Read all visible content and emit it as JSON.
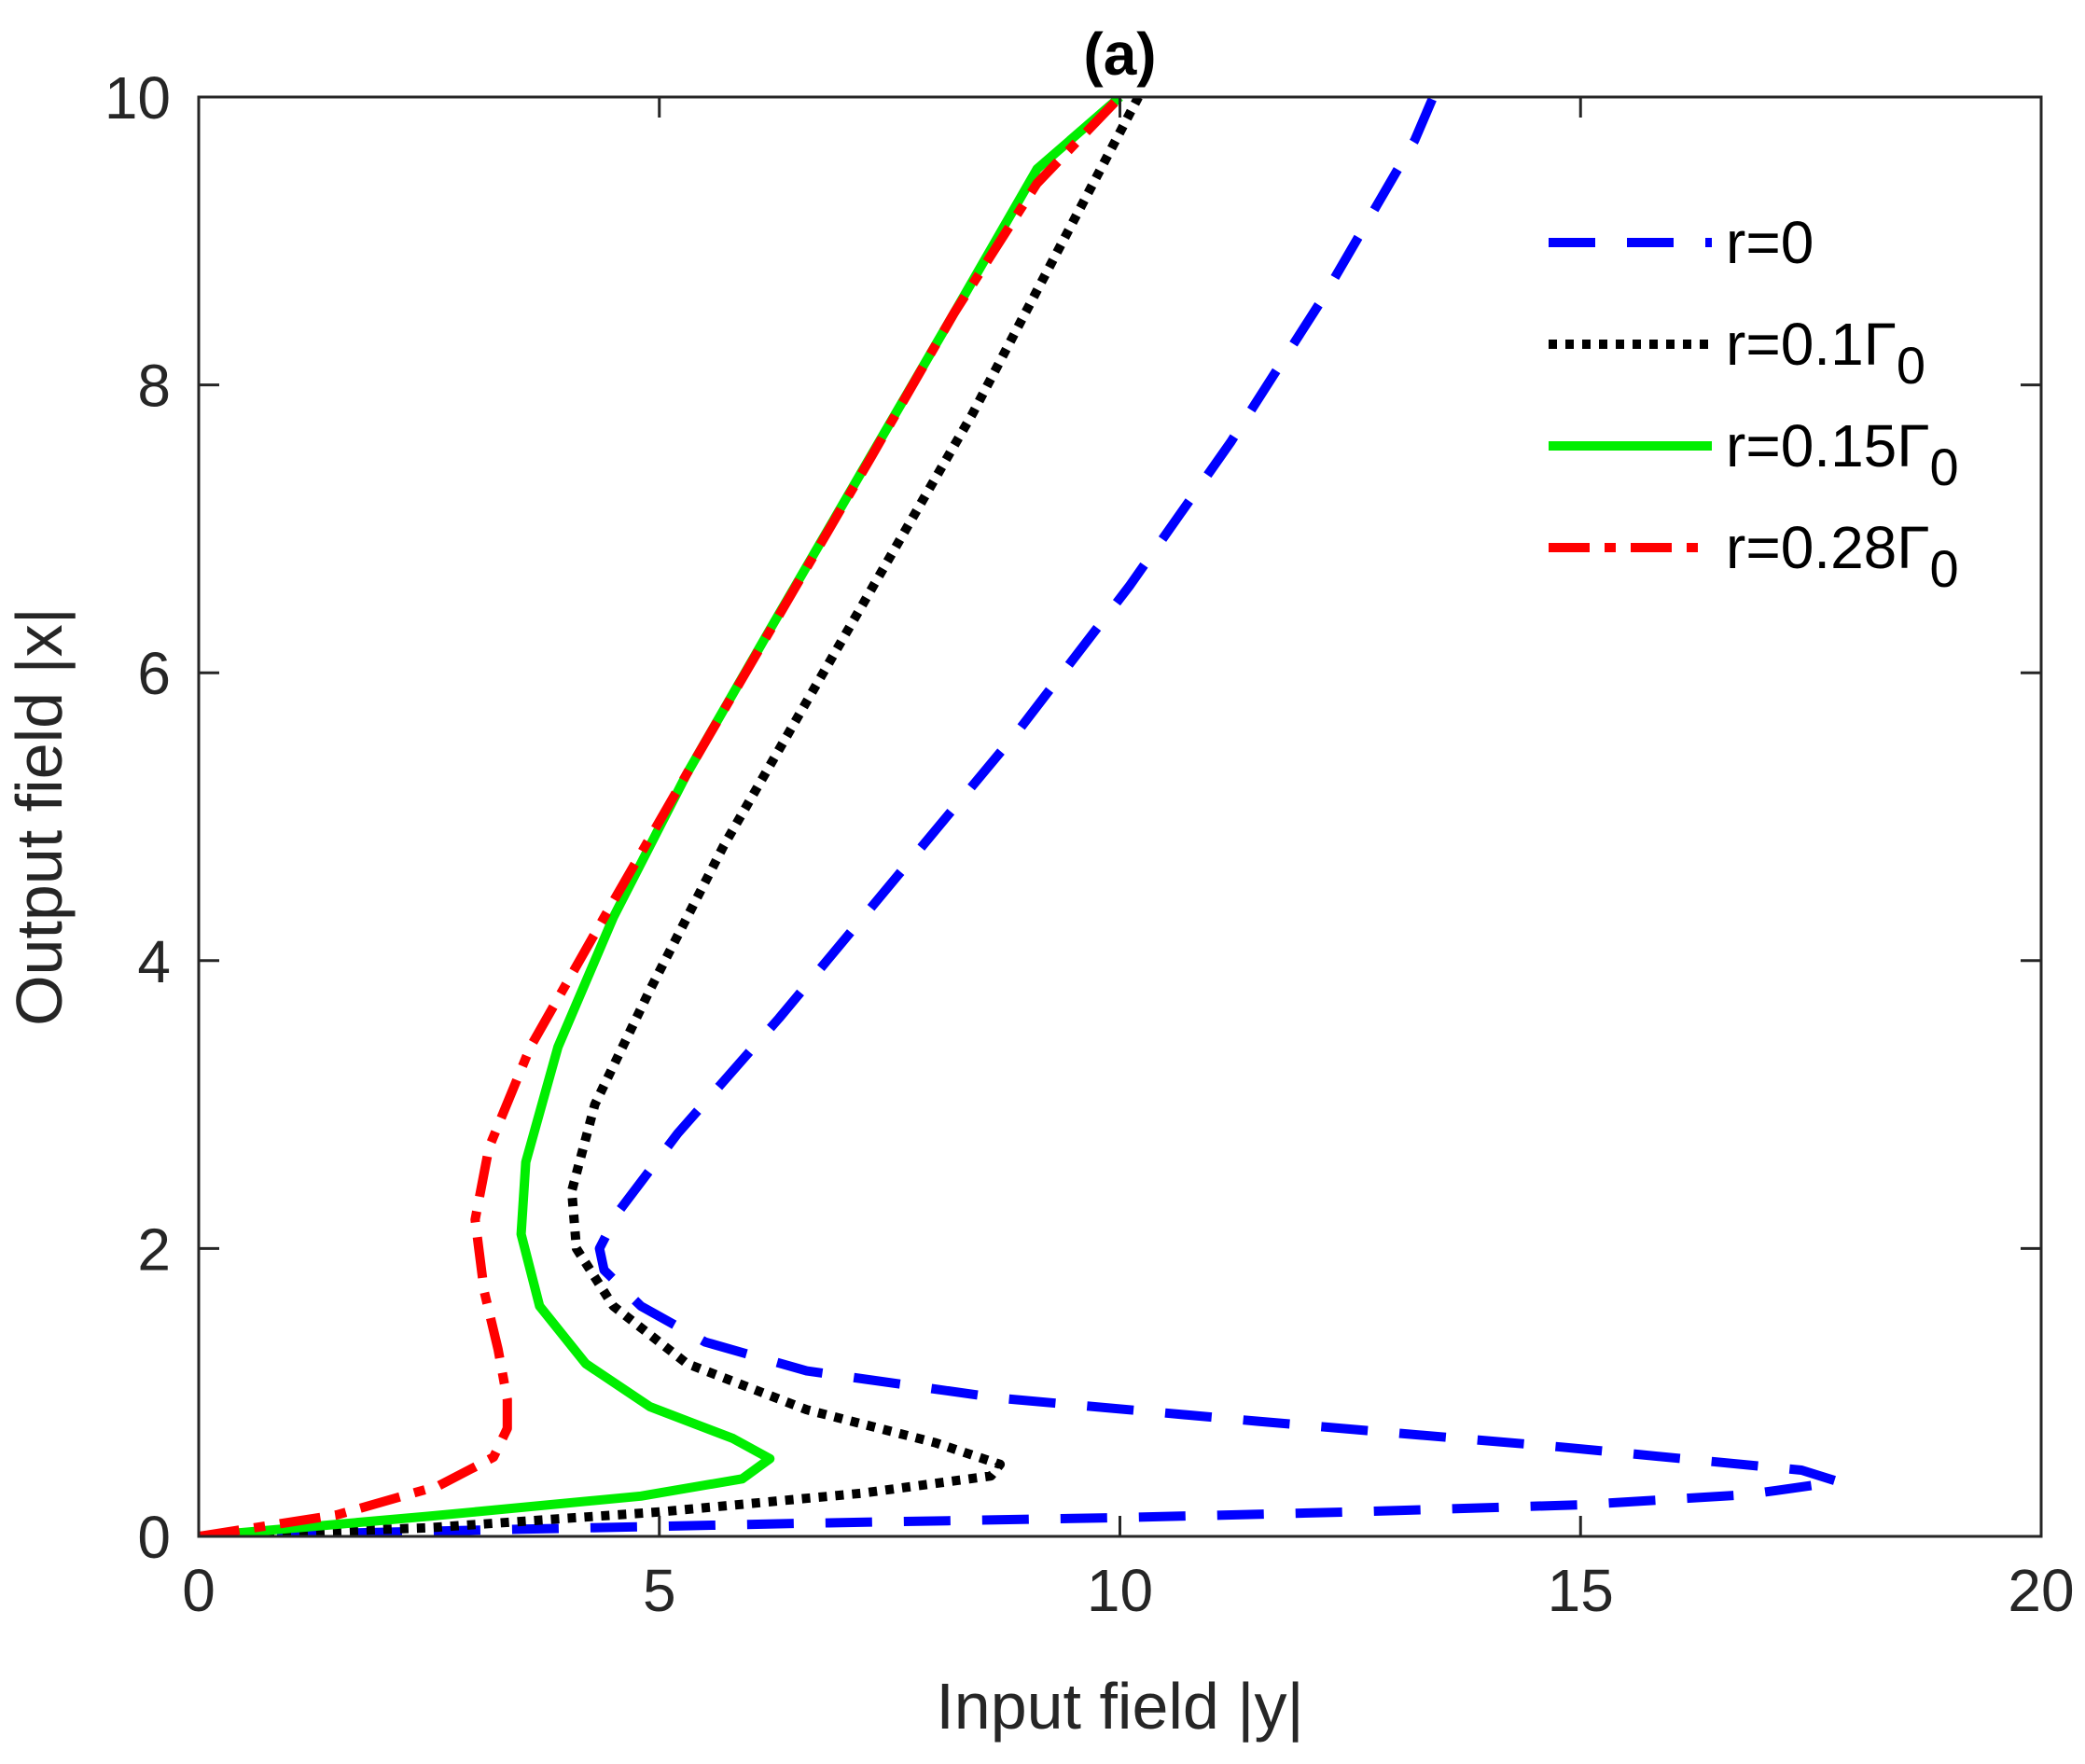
{
  "chart_data": {
    "type": "line",
    "title": "(a)",
    "xlabel": "Input field |y|",
    "ylabel": "Output field |x|",
    "xlim": [
      0,
      20
    ],
    "ylim": [
      0,
      10
    ],
    "xticks": [
      0,
      5,
      10,
      15,
      20
    ],
    "yticks": [
      0,
      2,
      4,
      6,
      8,
      10
    ],
    "grid": false,
    "legend_position": "top-right",
    "series": [
      {
        "name": "r=0",
        "label_main": "r=0",
        "label_sub": "",
        "color": "#0000ff",
        "dash": "dashed",
        "points": [
          [
            0,
            0
          ],
          [
            3.5,
            0.05
          ],
          [
            6.5,
            0.09
          ],
          [
            10,
            0.13
          ],
          [
            12.5,
            0.17
          ],
          [
            15,
            0.22
          ],
          [
            16.8,
            0.29
          ],
          [
            17.8,
            0.38
          ],
          [
            17.4,
            0.46
          ],
          [
            14.8,
            0.62
          ],
          [
            11.5,
            0.8
          ],
          [
            8.7,
            0.96
          ],
          [
            6.6,
            1.15
          ],
          [
            5.5,
            1.35
          ],
          [
            4.8,
            1.6
          ],
          [
            4.4,
            1.85
          ],
          [
            4.35,
            2.0
          ],
          [
            4.55,
            2.25
          ],
          [
            5.2,
            2.8
          ],
          [
            6.3,
            3.6
          ],
          [
            7.6,
            4.6
          ],
          [
            8.9,
            5.6
          ],
          [
            10.1,
            6.6
          ],
          [
            11.2,
            7.6
          ],
          [
            12.2,
            8.6
          ],
          [
            13.2,
            9.7
          ],
          [
            13.4,
            10
          ]
        ]
      },
      {
        "name": "r=0.1Γ0",
        "label_main": "r=0.1Γ",
        "label_sub": "0",
        "color": "#000000",
        "dash": "dotted",
        "points": [
          [
            0,
            0
          ],
          [
            2.5,
            0.06
          ],
          [
            5,
            0.17
          ],
          [
            7.2,
            0.3
          ],
          [
            8.6,
            0.42
          ],
          [
            8.7,
            0.5
          ],
          [
            8.0,
            0.65
          ],
          [
            6.6,
            0.88
          ],
          [
            5.3,
            1.2
          ],
          [
            4.5,
            1.6
          ],
          [
            4.1,
            2.0
          ],
          [
            4.05,
            2.4
          ],
          [
            4.3,
            3.0
          ],
          [
            4.9,
            3.8
          ],
          [
            5.7,
            4.8
          ],
          [
            6.6,
            5.8
          ],
          [
            7.5,
            6.8
          ],
          [
            8.4,
            7.8
          ],
          [
            9.3,
            8.9
          ],
          [
            10.2,
            10
          ]
        ]
      },
      {
        "name": "r=0.15Γ0",
        "label_main": "r=0.15Γ",
        "label_sub": "0",
        "color": "#00ee00",
        "dash": "solid",
        "points": [
          [
            0,
            0
          ],
          [
            2.5,
            0.14
          ],
          [
            4.8,
            0.28
          ],
          [
            5.9,
            0.4
          ],
          [
            6.2,
            0.54
          ],
          [
            5.8,
            0.68
          ],
          [
            4.9,
            0.9
          ],
          [
            4.2,
            1.2
          ],
          [
            3.7,
            1.6
          ],
          [
            3.5,
            2.1
          ],
          [
            3.55,
            2.6
          ],
          [
            3.9,
            3.4
          ],
          [
            4.5,
            4.3
          ],
          [
            5.3,
            5.3
          ],
          [
            6.2,
            6.3
          ],
          [
            7.2,
            7.4
          ],
          [
            8.2,
            8.5
          ],
          [
            9.1,
            9.5
          ],
          [
            10.0,
            10
          ]
        ]
      },
      {
        "name": "r=0.28Γ0",
        "label_main": "r=0.28Γ",
        "label_sub": "0",
        "color": "#ff0000",
        "dash": "dashdot",
        "points": [
          [
            0,
            0
          ],
          [
            1.5,
            0.15
          ],
          [
            2.6,
            0.35
          ],
          [
            3.2,
            0.55
          ],
          [
            3.35,
            0.75
          ],
          [
            3.35,
            0.95
          ],
          [
            3.25,
            1.3
          ],
          [
            3.1,
            1.7
          ],
          [
            3.0,
            2.2
          ],
          [
            3.15,
            2.7
          ],
          [
            3.6,
            3.4
          ],
          [
            4.4,
            4.3
          ],
          [
            5.3,
            5.3
          ],
          [
            6.3,
            6.4
          ],
          [
            7.3,
            7.5
          ],
          [
            8.2,
            8.5
          ],
          [
            9.1,
            9.4
          ],
          [
            10.0,
            10
          ]
        ]
      }
    ]
  }
}
